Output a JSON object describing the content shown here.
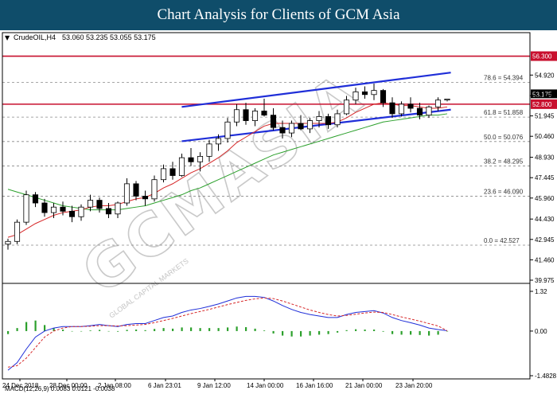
{
  "banner": {
    "title": "Chart Analysis for Clients of GCM Asia"
  },
  "header": {
    "symbol": "CrudeOIL,H4",
    "ohlc": "53.060 53.235 53.055 53.175"
  },
  "watermark": {
    "brand": "GCMASIA",
    "subtitle": "GLOBAL CAPITAL MARKETS"
  },
  "chart_data": {
    "type": "candlestick",
    "ylim": [
      39.975,
      57.2
    ],
    "y_ticks": [
      "54.920",
      "53.420",
      "51.945",
      "50.460",
      "48.930",
      "47.445",
      "45.960",
      "44.430",
      "42.945",
      "41.460",
      "39.975"
    ],
    "x_labels": [
      "24 Dec 2018",
      "28 Dec 00:00",
      "2 Jan 08:00",
      "6 Jan 23:01",
      "9 Jan 12:00",
      "14 Jan 00:00",
      "16 Jan 16:00",
      "21 Jan 00:00",
      "23 Jan 20:00"
    ],
    "current_price": {
      "label": "53.175",
      "value": 53.175
    },
    "levels": [
      {
        "label": "56.300",
        "value": 56.3,
        "color": "#c8102e"
      },
      {
        "label": "52.800",
        "value": 52.8,
        "color": "#c8102e"
      }
    ],
    "fibonacci": [
      {
        "label": "78.6 = 54.394",
        "value": 54.394
      },
      {
        "label": "61.8 = 51.858",
        "value": 51.858
      },
      {
        "label": "50.0 = 50.076",
        "value": 50.076
      },
      {
        "label": "38.2 = 48.295",
        "value": 48.295
      },
      {
        "label": "23.6 = 46.090",
        "value": 46.09
      },
      {
        "label": "0.0 = 42.527",
        "value": 42.527
      }
    ],
    "channel": {
      "upper": [
        [
          0.34,
          52.6
        ],
        [
          0.85,
          55.1
        ]
      ],
      "lower": [
        [
          0.34,
          50.1
        ],
        [
          0.85,
          52.4
        ]
      ]
    },
    "candles": [
      [
        42.6,
        43.0,
        42.2,
        42.8
      ],
      [
        42.8,
        44.4,
        42.6,
        44.2
      ],
      [
        44.2,
        46.5,
        44.0,
        46.2
      ],
      [
        46.2,
        46.4,
        45.3,
        45.6
      ],
      [
        45.6,
        45.9,
        44.6,
        44.9
      ],
      [
        44.9,
        45.6,
        44.5,
        45.3
      ],
      [
        45.3,
        45.7,
        44.7,
        45.0
      ],
      [
        45.0,
        45.4,
        44.2,
        44.6
      ],
      [
        44.6,
        45.5,
        44.3,
        45.3
      ],
      [
        45.3,
        46.2,
        45.0,
        45.8
      ],
      [
        45.8,
        46.0,
        44.9,
        45.2
      ],
      [
        45.2,
        45.6,
        44.5,
        44.8
      ],
      [
        44.8,
        45.7,
        44.5,
        45.6
      ],
      [
        45.6,
        47.4,
        45.4,
        47.0
      ],
      [
        47.0,
        47.2,
        45.8,
        46.1
      ],
      [
        46.1,
        46.5,
        45.4,
        45.9
      ],
      [
        45.9,
        47.6,
        45.7,
        47.3
      ],
      [
        47.3,
        48.4,
        47.1,
        48.1
      ],
      [
        48.1,
        48.6,
        47.3,
        47.6
      ],
      [
        47.6,
        49.2,
        47.5,
        48.9
      ],
      [
        48.9,
        49.6,
        48.3,
        48.6
      ],
      [
        48.6,
        49.3,
        47.9,
        49.0
      ],
      [
        49.0,
        50.2,
        48.6,
        49.9
      ],
      [
        49.9,
        50.6,
        49.4,
        50.3
      ],
      [
        50.3,
        51.8,
        50.0,
        51.5
      ],
      [
        51.5,
        52.8,
        51.2,
        52.4
      ],
      [
        52.4,
        52.9,
        51.3,
        51.6
      ],
      [
        51.6,
        52.5,
        51.2,
        52.3
      ],
      [
        52.3,
        53.2,
        51.9,
        52.0
      ],
      [
        52.0,
        52.5,
        50.9,
        51.1
      ],
      [
        51.1,
        51.6,
        50.3,
        50.7
      ],
      [
        50.7,
        51.6,
        50.4,
        51.4
      ],
      [
        51.4,
        52.0,
        50.9,
        51.0
      ],
      [
        51.0,
        51.8,
        50.7,
        51.6
      ],
      [
        51.6,
        52.3,
        51.1,
        51.9
      ],
      [
        51.9,
        52.1,
        51.0,
        51.3
      ],
      [
        51.3,
        52.4,
        51.1,
        52.1
      ],
      [
        52.1,
        53.4,
        52.0,
        53.1
      ],
      [
        53.1,
        54.0,
        52.8,
        53.7
      ],
      [
        53.7,
        54.1,
        53.2,
        53.5
      ],
      [
        53.5,
        54.3,
        53.1,
        53.8
      ],
      [
        53.8,
        53.9,
        52.6,
        52.9
      ],
      [
        52.9,
        53.3,
        51.8,
        52.1
      ],
      [
        52.1,
        53.0,
        51.9,
        52.8
      ],
      [
        52.8,
        53.3,
        52.2,
        52.5
      ],
      [
        52.5,
        52.9,
        51.7,
        52.0
      ],
      [
        52.0,
        52.7,
        51.8,
        52.6
      ],
      [
        52.6,
        53.3,
        52.3,
        53.1
      ],
      [
        53.1,
        53.2,
        53.0,
        53.175
      ]
    ],
    "ma_red": [
      43.1,
      43.3,
      43.7,
      44.1,
      44.4,
      44.7,
      44.9,
      45.0,
      45.1,
      45.3,
      45.4,
      45.4,
      45.5,
      45.7,
      45.9,
      46.0,
      46.3,
      46.7,
      47.0,
      47.4,
      47.8,
      48.1,
      48.5,
      48.9,
      49.4,
      50.0,
      50.4,
      50.8,
      51.2,
      51.4,
      51.4,
      51.4,
      51.4,
      51.4,
      51.4,
      51.4,
      51.5,
      51.8,
      52.2,
      52.5,
      52.8,
      52.9,
      52.8,
      52.7,
      52.7,
      52.6,
      52.5,
      52.5,
      52.6
    ],
    "ma_green": [
      46.6,
      46.4,
      46.2,
      46.0,
      45.8,
      45.6,
      45.4,
      45.3,
      45.2,
      45.1,
      45.1,
      45.1,
      45.1,
      45.2,
      45.3,
      45.4,
      45.6,
      45.8,
      46.0,
      46.2,
      46.5,
      46.7,
      47.0,
      47.3,
      47.6,
      47.9,
      48.2,
      48.5,
      48.8,
      49.1,
      49.3,
      49.5,
      49.7,
      49.9,
      50.1,
      50.3,
      50.5,
      50.7,
      50.9,
      51.1,
      51.3,
      51.5,
      51.6,
      51.7,
      51.8,
      51.9,
      52.0,
      52.0,
      52.1
    ],
    "macd": {
      "label": "MACD(12,26,9) 0.0083 0.0121 -0.0038",
      "ylim": [
        -1.4828,
        1.32
      ],
      "y_ticks": [
        "1.32",
        "0.00",
        "-1.4828"
      ],
      "macd_line": [
        -1.3,
        -1.05,
        -0.6,
        -0.2,
        0.0,
        0.1,
        0.15,
        0.15,
        0.15,
        0.18,
        0.22,
        0.18,
        0.15,
        0.22,
        0.25,
        0.25,
        0.35,
        0.45,
        0.5,
        0.62,
        0.7,
        0.75,
        0.82,
        0.9,
        1.0,
        1.1,
        1.15,
        1.15,
        1.12,
        1.0,
        0.85,
        0.72,
        0.62,
        0.55,
        0.5,
        0.45,
        0.45,
        0.55,
        0.62,
        0.65,
        0.68,
        0.6,
        0.45,
        0.35,
        0.28,
        0.2,
        0.1,
        0.05,
        0.01
      ],
      "signal_line": [
        -1.2,
        -1.15,
        -0.9,
        -0.55,
        -0.2,
        0.0,
        0.1,
        0.15,
        0.15,
        0.16,
        0.18,
        0.18,
        0.17,
        0.18,
        0.2,
        0.22,
        0.28,
        0.35,
        0.42,
        0.5,
        0.58,
        0.65,
        0.72,
        0.8,
        0.88,
        0.95,
        1.02,
        1.07,
        1.1,
        1.08,
        1.0,
        0.9,
        0.8,
        0.7,
        0.62,
        0.55,
        0.5,
        0.52,
        0.56,
        0.6,
        0.63,
        0.62,
        0.55,
        0.47,
        0.4,
        0.33,
        0.25,
        0.17,
        0.01
      ],
      "histogram": [
        -0.1,
        0.1,
        0.3,
        0.35,
        0.2,
        0.1,
        0.05,
        0.0,
        0.0,
        0.02,
        0.04,
        0.0,
        -0.02,
        0.04,
        0.05,
        0.03,
        0.07,
        0.1,
        0.08,
        0.12,
        0.12,
        0.1,
        0.1,
        0.1,
        0.12,
        0.15,
        0.13,
        0.08,
        0.02,
        -0.08,
        -0.15,
        -0.18,
        -0.18,
        -0.15,
        -0.12,
        -0.1,
        -0.05,
        0.03,
        0.06,
        0.05,
        0.05,
        -0.02,
        -0.1,
        -0.12,
        -0.12,
        -0.13,
        -0.15,
        -0.12,
        0.0
      ]
    }
  }
}
